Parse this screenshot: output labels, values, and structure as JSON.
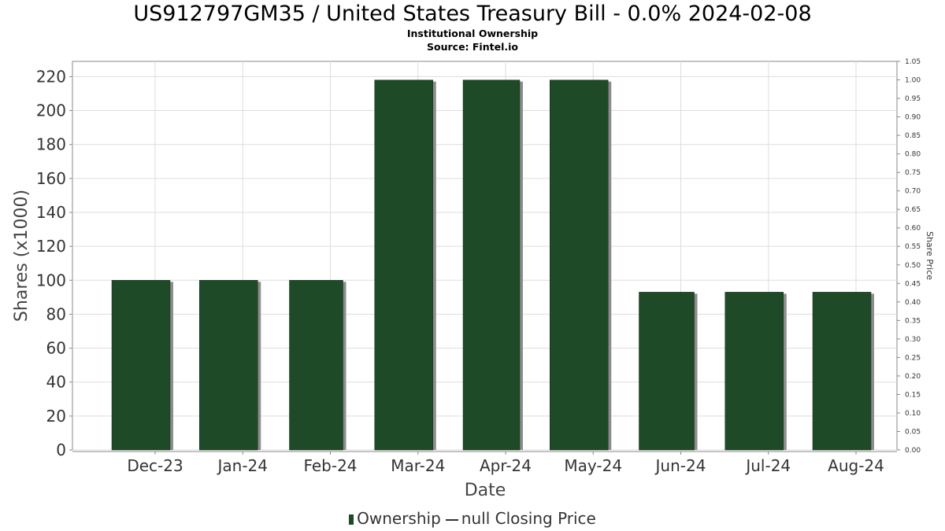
{
  "header": {
    "title": "US912797GM35 / United States Treasury Bill - 0.0% 2024-02-08",
    "subtitle": "Institutional Ownership",
    "source": "Source: Fintel.io"
  },
  "legend": {
    "ownership_label": "Ownership",
    "price_label": "null Closing Price"
  },
  "colors": {
    "bar": "#1e4a27",
    "bar_shadow": "#8c8c8c",
    "grid": "#dddddd",
    "axis": "#888888"
  },
  "chart_data": {
    "type": "bar",
    "xlabel": "Date",
    "ylabel": "Shares (x1000)",
    "y2label": "Share Price",
    "categories": [
      "Dec-23",
      "Jan-24",
      "Feb-24",
      "Mar-24",
      "Apr-24",
      "May-24",
      "Jun-24",
      "Jul-24",
      "Aug-24"
    ],
    "series": [
      {
        "name": "Ownership",
        "values": [
          100,
          100,
          100,
          218,
          218,
          218,
          93,
          93,
          93
        ]
      }
    ],
    "ylim": [
      0,
      229
    ],
    "yticks": [
      "0",
      "20",
      "40",
      "60",
      "80",
      "100",
      "120",
      "140",
      "160",
      "180",
      "200",
      "220"
    ],
    "y2lim": [
      0,
      1.05
    ],
    "y2ticks": [
      "0.00",
      "0.05",
      "0.10",
      "0.15",
      "0.20",
      "0.25",
      "0.30",
      "0.35",
      "0.40",
      "0.45",
      "0.50",
      "0.55",
      "0.60",
      "0.65",
      "0.70",
      "0.75",
      "0.80",
      "0.85",
      "0.90",
      "0.95",
      "1.00",
      "1.05"
    ],
    "grid": true,
    "legend_position": "bottom"
  }
}
